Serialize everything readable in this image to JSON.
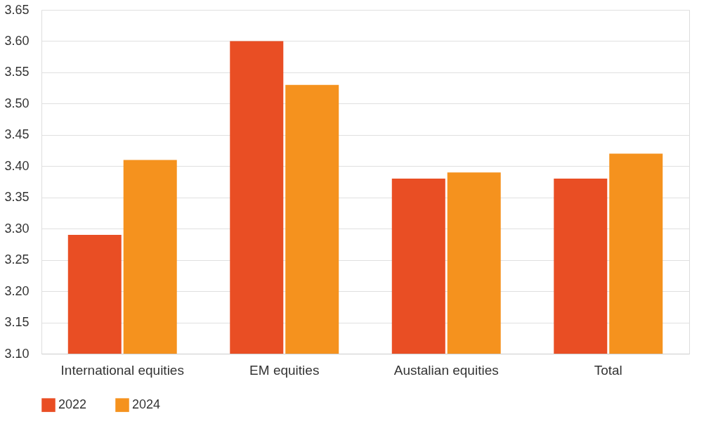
{
  "chart_data": {
    "type": "bar",
    "categories": [
      "International equities",
      "EM equities",
      "Austalian equities",
      "Total"
    ],
    "series": [
      {
        "name": "2022",
        "color": "#e94e24",
        "values": [
          3.29,
          3.6,
          3.38,
          3.38
        ]
      },
      {
        "name": "2024",
        "color": "#f5921e",
        "values": [
          3.41,
          3.53,
          3.39,
          3.42
        ]
      }
    ],
    "ylim": [
      3.1,
      3.65
    ],
    "yticks": [
      {
        "value": 3.1,
        "label": "3.10"
      },
      {
        "value": 3.15,
        "label": "3.15"
      },
      {
        "value": 3.2,
        "label": "3.20"
      },
      {
        "value": 3.25,
        "label": "3.25"
      },
      {
        "value": 3.3,
        "label": "3.30"
      },
      {
        "value": 3.35,
        "label": "3.35"
      },
      {
        "value": 3.4,
        "label": "3.40"
      },
      {
        "value": 3.45,
        "label": "3.45"
      },
      {
        "value": 3.5,
        "label": "3.50"
      },
      {
        "value": 3.55,
        "label": "3.55"
      },
      {
        "value": 3.6,
        "label": "3.60"
      },
      {
        "value": 3.65,
        "label": "3.65"
      }
    ],
    "grid": "y",
    "legend": "bottom"
  }
}
